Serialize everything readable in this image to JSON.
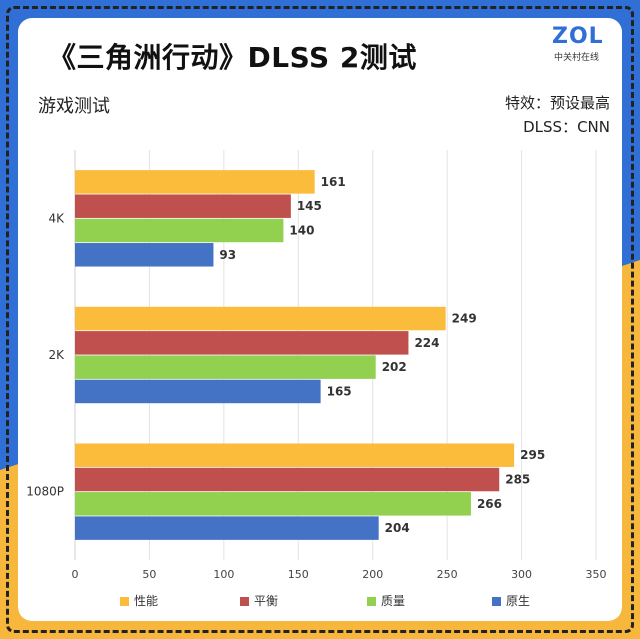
{
  "header": {
    "title": "《三角洲行动》DLSS 2测试",
    "subtitle": "游戏测试",
    "note_effects": "特效：预设最高",
    "note_dlss": "DLSS：CNN"
  },
  "logo": {
    "main": "ZOL",
    "sub": "中关村在线"
  },
  "colors": {
    "background_blue": "#2f6fd6",
    "background_yellow": "#f6b73c"
  },
  "chart_data": {
    "type": "bar",
    "orientation": "horizontal",
    "categories": [
      "4K",
      "2K",
      "1080P"
    ],
    "series": [
      {
        "name": "性能",
        "color": "#fbbc3c",
        "values": [
          161,
          249,
          295
        ]
      },
      {
        "name": "平衡",
        "color": "#c0504d",
        "values": [
          145,
          224,
          285
        ]
      },
      {
        "name": "质量",
        "color": "#92d050",
        "values": [
          140,
          202,
          266
        ]
      },
      {
        "name": "原生",
        "color": "#4472c4",
        "values": [
          93,
          165,
          204
        ]
      }
    ],
    "xlim": [
      0,
      350
    ],
    "xticks": [
      0,
      50,
      100,
      150,
      200,
      250,
      300,
      350
    ],
    "grid": true,
    "legend_position": "bottom"
  }
}
